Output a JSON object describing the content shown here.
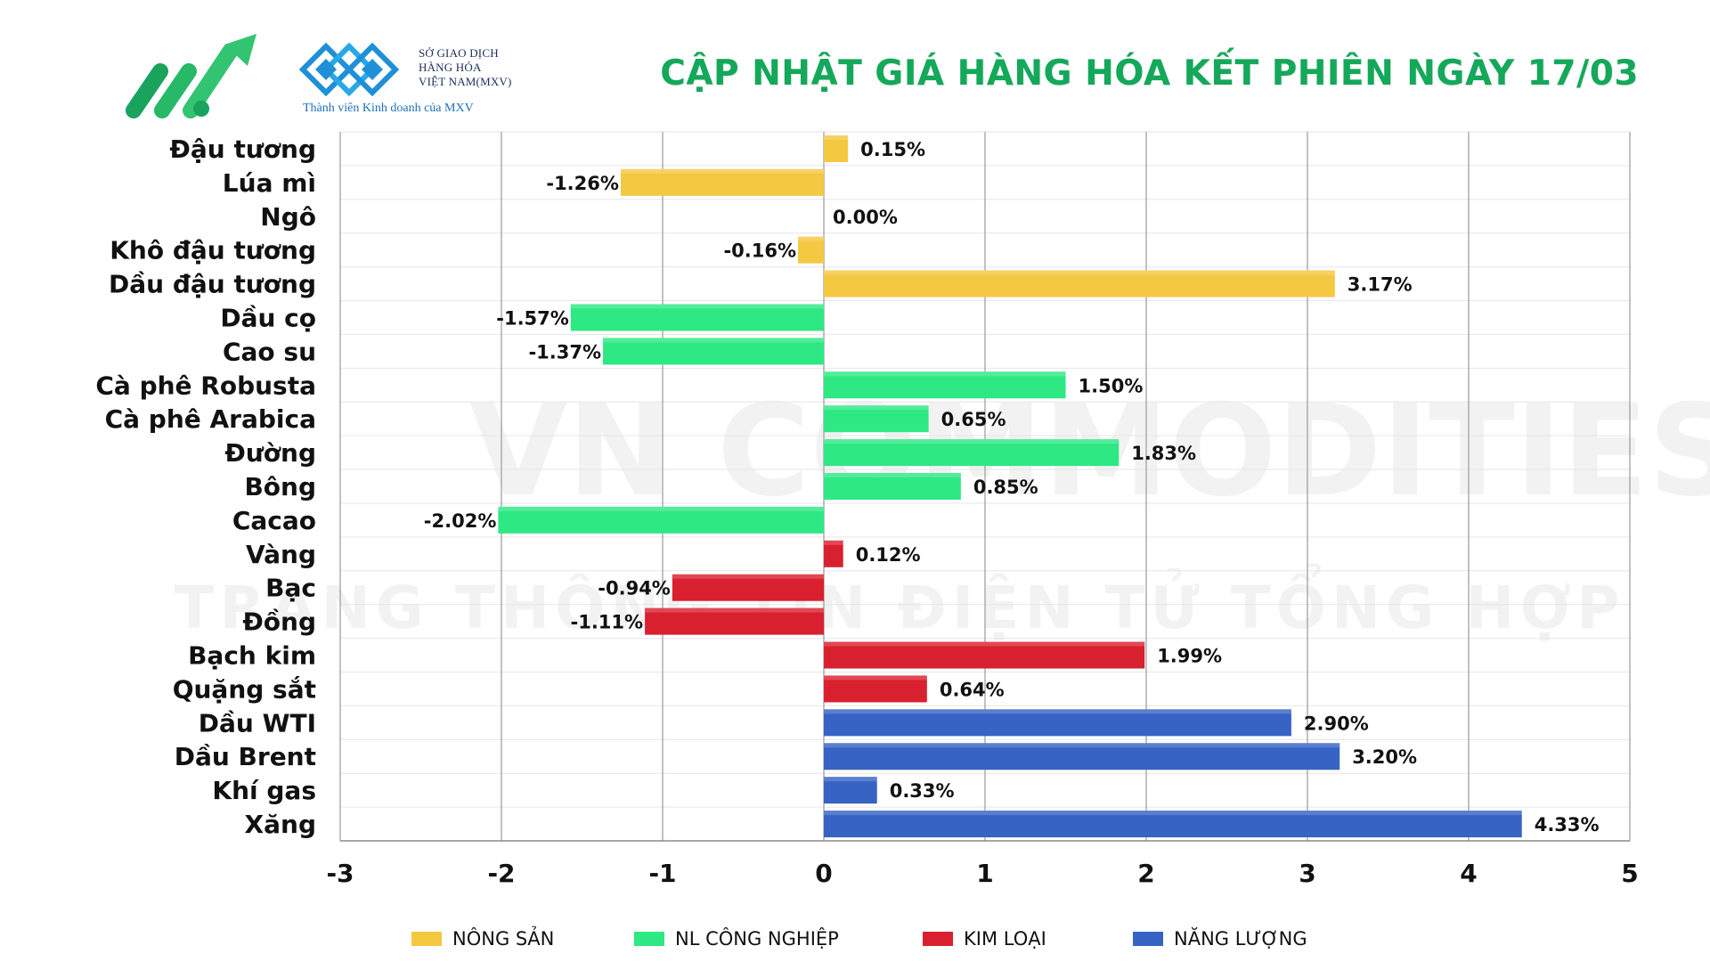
{
  "header": {
    "title": "CẬP NHẬT GIÁ HÀNG HÓA KẾT PHIÊN NGÀY 17/03",
    "exchange_lines": [
      "SỞ GIAO DỊCH",
      "HÀNG HÓA",
      "VIỆT NAM(MXV)"
    ],
    "member_line": "Thành viên Kinh doanh của MXV"
  },
  "watermark": {
    "line1": "VN COMMODITIES",
    "line2": "TRANG THÔNG TIN ĐIỆN TỬ TỔNG HỢP"
  },
  "colors": {
    "title": "#14a85a",
    "nong_san": "#f5c842",
    "nl_cong_nghiep": "#2ee884",
    "kim_loai": "#d9202f",
    "nang_luong": "#3663c4",
    "grid": "#e6e6e6",
    "axis_major": "#9a9a9a"
  },
  "chart_data": {
    "type": "bar",
    "orientation": "horizontal",
    "title": "",
    "xlabel": "",
    "ylabel": "",
    "xlim": [
      -3,
      5
    ],
    "xticks": [
      "-3",
      "-2",
      "-1",
      "0",
      "1",
      "2",
      "3",
      "4",
      "5"
    ],
    "grid": true,
    "legend_position": "bottom",
    "categories": [
      "Đậu tương",
      "Lúa mì",
      "Ngô",
      "Khô đậu tương",
      "Dầu đậu tương",
      "Dầu cọ",
      "Cao su",
      "Cà phê Robusta",
      "Cà phê Arabica",
      "Đường",
      "Bông",
      "Cacao",
      "Vàng",
      "Bạc",
      "Đồng",
      "Bạch kim",
      "Quặng sắt",
      "Dầu WTI",
      "Dầu Brent",
      "Khí gas",
      "Xăng"
    ],
    "values": [
      0.15,
      -1.26,
      0.0,
      -0.16,
      3.17,
      -1.57,
      -1.37,
      1.5,
      0.65,
      1.83,
      0.85,
      -2.02,
      0.12,
      -0.94,
      -1.11,
      1.99,
      0.64,
      2.9,
      3.2,
      0.33,
      4.33
    ],
    "value_labels": [
      "0.15%",
      "-1.26%",
      "0.00%",
      "-0.16%",
      "3.17%",
      "-1.57%",
      "-1.37%",
      "1.50%",
      "0.65%",
      "1.83%",
      "0.85%",
      "-2.02%",
      "0.12%",
      "-0.94%",
      "-1.11%",
      "1.99%",
      "0.64%",
      "2.90%",
      "3.20%",
      "0.33%",
      "4.33%"
    ],
    "groups": [
      "NÔNG SẢN",
      "NÔNG SẢN",
      "NÔNG SẢN",
      "NÔNG SẢN",
      "NÔNG SẢN",
      "NL CÔNG NGHIỆP",
      "NL CÔNG NGHIỆP",
      "NL CÔNG NGHIỆP",
      "NL CÔNG NGHIỆP",
      "NL CÔNG NGHIỆP",
      "NL CÔNG NGHIỆP",
      "NL CÔNG NGHIỆP",
      "KIM LOẠI",
      "KIM LOẠI",
      "KIM LOẠI",
      "KIM LOẠI",
      "KIM LOẠI",
      "NĂNG LƯỢNG",
      "NĂNG LƯỢNG",
      "NĂNG LƯỢNG",
      "NĂNG LƯỢNG"
    ],
    "legend": [
      {
        "name": "NÔNG SẢN",
        "color": "#f5c842"
      },
      {
        "name": "NL CÔNG NGHIỆP",
        "color": "#2ee884"
      },
      {
        "name": "KIM LOẠI",
        "color": "#d9202f"
      },
      {
        "name": "NĂNG LƯỢNG",
        "color": "#3663c4"
      }
    ]
  }
}
